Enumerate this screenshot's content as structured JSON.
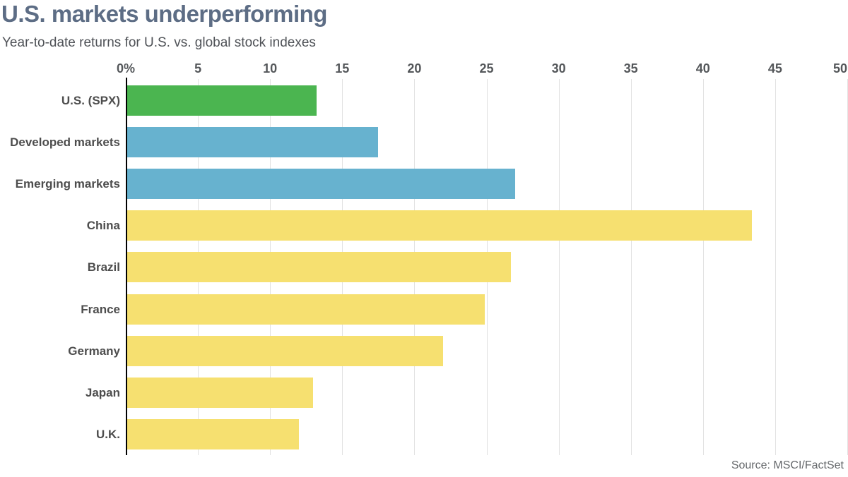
{
  "header": {
    "title": "U.S. markets underperforming",
    "subtitle": "Year-to-date returns for U.S. vs. global stock indexes"
  },
  "footer": {
    "source": "Source: MSCI/FactSet"
  },
  "colors": {
    "us_bar": "#4bb550",
    "aggregate_bar": "#67b2cf",
    "country_bar": "#f6e070",
    "title_text": "#5d6d85",
    "label_text": "#4d4d4d",
    "gridline": "#e2e2e2",
    "axis_line": "#000000",
    "source_text": "#65686b"
  },
  "chart_data": {
    "type": "bar",
    "orientation": "horizontal",
    "title": "U.S. markets underperforming",
    "subtitle": "Year-to-date returns for U.S. vs. global stock indexes",
    "categories": [
      "U.S. (SPX)",
      "Developed markets",
      "Emerging markets",
      "China",
      "Brazil",
      "France",
      "Germany",
      "Japan",
      "U.K."
    ],
    "values": [
      13.2,
      17.5,
      27.0,
      43.4,
      26.7,
      24.9,
      22.0,
      13.0,
      12.0
    ],
    "bar_colors": [
      "#4bb550",
      "#67b2cf",
      "#67b2cf",
      "#f6e070",
      "#f6e070",
      "#f6e070",
      "#f6e070",
      "#f6e070",
      "#f6e070"
    ],
    "x_ticks": [
      "0%",
      "5",
      "10",
      "15",
      "20",
      "25",
      "30",
      "35",
      "40",
      "45",
      "50"
    ],
    "x_tick_values": [
      0,
      5,
      10,
      15,
      20,
      25,
      30,
      35,
      40,
      45,
      50
    ],
    "xlim": [
      0,
      50
    ],
    "grid": true,
    "legend": "none",
    "source": "Source: MSCI/FactSet"
  }
}
